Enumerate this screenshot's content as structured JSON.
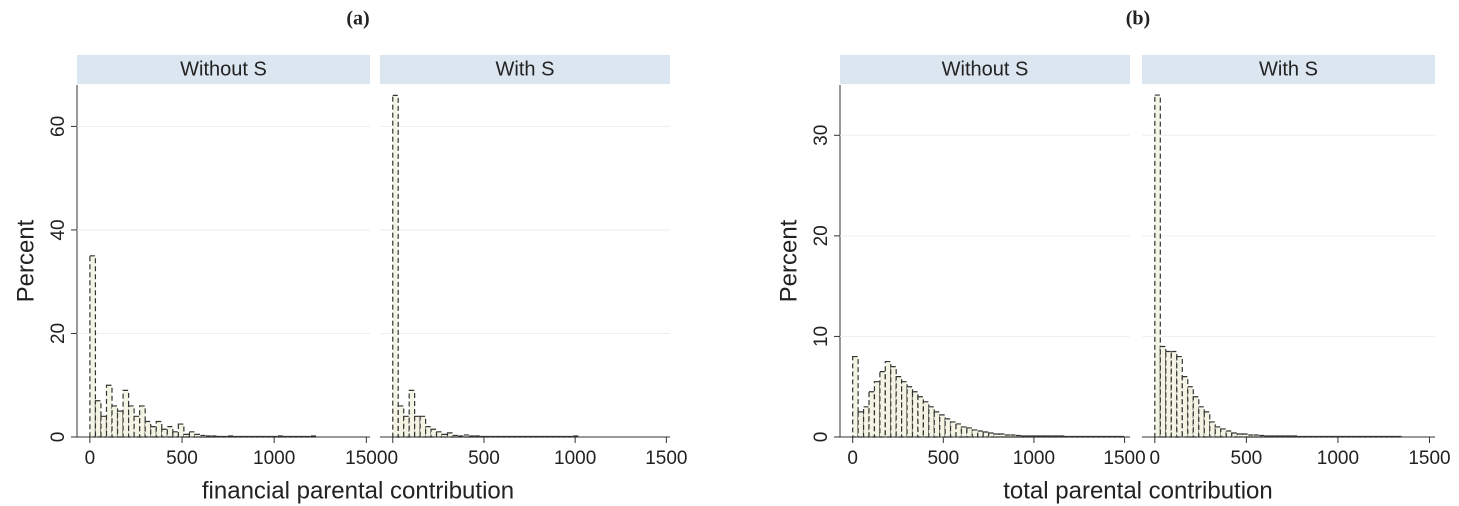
{
  "chart_data": [
    {
      "type": "histogram",
      "title": "(a)",
      "xlabel": "financial parental contribution",
      "ylabel": "Percent",
      "bins": [
        0,
        30,
        60,
        90,
        120,
        150,
        180,
        210,
        240,
        270,
        300,
        330,
        360,
        390,
        420,
        450,
        480,
        510,
        540,
        570,
        600,
        630,
        660,
        690,
        720,
        750,
        780,
        810,
        840,
        870,
        900,
        930,
        960,
        990,
        1020,
        1050,
        1080,
        1110,
        1140,
        1170,
        1200,
        1230,
        1260,
        1290,
        1320,
        1350,
        1380,
        1410,
        1440,
        1470,
        1500
      ],
      "xlim": [
        -70,
        1520
      ],
      "xticks": [
        0,
        500,
        1000,
        1500
      ],
      "ylim": [
        0,
        68
      ],
      "yticks": [
        0,
        20,
        40,
        60
      ],
      "grid": true,
      "color": "#f4f4e4",
      "panels": [
        {
          "title": "Without S",
          "values": [
            35,
            7,
            4,
            10,
            6,
            5,
            9,
            6,
            4,
            6,
            3,
            2,
            3,
            1.5,
            2,
            1,
            2.5,
            0.5,
            1,
            0.5,
            0.3,
            0.2,
            0.2,
            0.1,
            0.1,
            0.2,
            0.1,
            0.1,
            0.1,
            0.1,
            0.1,
            0.1,
            0.1,
            0.1,
            0.2,
            0.1,
            0.1,
            0.1,
            0.1,
            0.1,
            0.2,
            0,
            0,
            0,
            0,
            0,
            0,
            0,
            0,
            0
          ]
        },
        {
          "title": "With S",
          "values": [
            66,
            6,
            4,
            9,
            4,
            4,
            2,
            1.5,
            1,
            0.5,
            0.8,
            0.3,
            0.2,
            0.4,
            0.2,
            0.2,
            0.1,
            0.1,
            0.1,
            0.1,
            0.1,
            0.1,
            0.1,
            0.1,
            0.1,
            0.1,
            0.1,
            0.1,
            0.1,
            0.1,
            0.1,
            0.1,
            0.1,
            0.2,
            0,
            0,
            0,
            0,
            0,
            0,
            0,
            0,
            0,
            0,
            0,
            0,
            0,
            0,
            0,
            0
          ]
        }
      ]
    },
    {
      "type": "histogram",
      "title": "(b)",
      "xlabel": "total parental contribution",
      "ylabel": "Percent",
      "bins": [
        0,
        30,
        60,
        90,
        120,
        150,
        180,
        210,
        240,
        270,
        300,
        330,
        360,
        390,
        420,
        450,
        480,
        510,
        540,
        570,
        600,
        630,
        660,
        690,
        720,
        750,
        780,
        810,
        840,
        870,
        900,
        930,
        960,
        990,
        1020,
        1050,
        1080,
        1110,
        1140,
        1170,
        1200,
        1230,
        1260,
        1290,
        1320,
        1350,
        1380,
        1410,
        1440,
        1470,
        1500
      ],
      "xlim": [
        -70,
        1530
      ],
      "xticks": [
        0,
        500,
        1000,
        1500
      ],
      "ylim": [
        0,
        35
      ],
      "yticks": [
        0,
        10,
        20,
        30
      ],
      "grid": true,
      "color": "#f4f4e4",
      "panels": [
        {
          "title": "Without S",
          "values": [
            8,
            2.5,
            3,
            4.5,
            5.5,
            6.5,
            7.5,
            7,
            6,
            5.5,
            5,
            4.5,
            4,
            3.5,
            3,
            2.5,
            2.2,
            1.8,
            1.5,
            1.3,
            1,
            0.9,
            0.7,
            0.6,
            0.5,
            0.4,
            0.3,
            0.3,
            0.2,
            0.2,
            0.15,
            0.1,
            0.1,
            0.1,
            0.1,
            0.1,
            0.1,
            0.1,
            0.1,
            0.05,
            0.05,
            0.05,
            0.05,
            0.05,
            0.05,
            0.05,
            0.05,
            0.05,
            0.05,
            0.05
          ]
        },
        {
          "title": "With S",
          "values": [
            34,
            9,
            8.5,
            8.5,
            8,
            6,
            5,
            4,
            3,
            2.5,
            1.5,
            1,
            0.8,
            0.6,
            0.4,
            0.3,
            0.3,
            0.2,
            0.2,
            0.15,
            0.1,
            0.1,
            0.1,
            0.1,
            0.1,
            0.1,
            0.05,
            0.05,
            0.05,
            0.05,
            0.05,
            0.05,
            0.05,
            0.05,
            0.05,
            0.05,
            0.05,
            0.05,
            0.05,
            0.05,
            0.05,
            0.05,
            0.05,
            0.05,
            0.05,
            0,
            0,
            0,
            0,
            0
          ]
        }
      ]
    }
  ]
}
